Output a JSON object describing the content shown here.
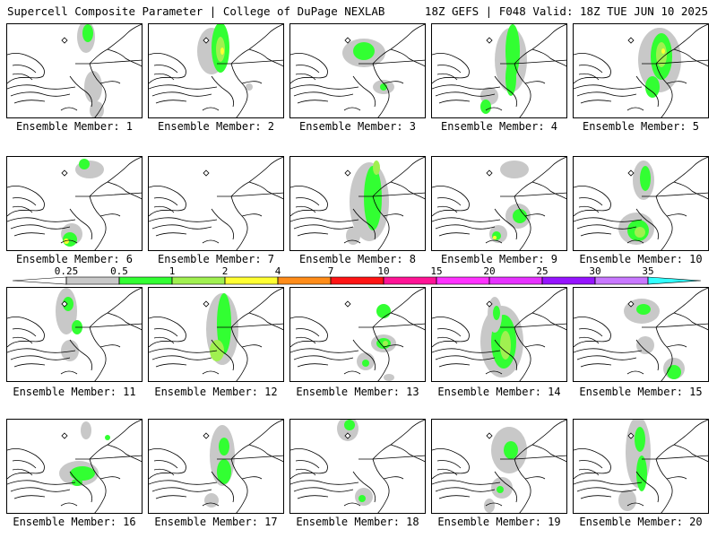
{
  "header": {
    "left": "Supercell Composite Parameter | College of DuPage NEXLAB",
    "right": "18Z GEFS | F048 Valid: 18Z TUE JUN 10 2025"
  },
  "members": [
    {
      "label": "Ensemble Member: 1"
    },
    {
      "label": "Ensemble Member: 2"
    },
    {
      "label": "Ensemble Member: 3"
    },
    {
      "label": "Ensemble Member: 4"
    },
    {
      "label": "Ensemble Member: 5"
    },
    {
      "label": "Ensemble Member: 6"
    },
    {
      "label": "Ensemble Member: 7"
    },
    {
      "label": "Ensemble Member: 8"
    },
    {
      "label": "Ensemble Member: 9"
    },
    {
      "label": "Ensemble Member: 10"
    },
    {
      "label": "Ensemble Member: 11"
    },
    {
      "label": "Ensemble Member: 12"
    },
    {
      "label": "Ensemble Member: 13"
    },
    {
      "label": "Ensemble Member: 14"
    },
    {
      "label": "Ensemble Member: 15"
    },
    {
      "label": "Ensemble Member: 16"
    },
    {
      "label": "Ensemble Member: 17"
    },
    {
      "label": "Ensemble Member: 18"
    },
    {
      "label": "Ensemble Member: 19"
    },
    {
      "label": "Ensemble Member: 20"
    }
  ],
  "colorbar": {
    "levels": [
      "0.25",
      "0.5",
      "1",
      "2",
      "4",
      "7",
      "10",
      "15",
      "20",
      "25",
      "30",
      "35"
    ],
    "colors": [
      "#c8c8c8",
      "#32ff32",
      "#a0f050",
      "#ffff32",
      "#ff8c19",
      "#ff1414",
      "#ff1496",
      "#ff32ff",
      "#e632ff",
      "#9614ff",
      "#c878ff",
      "#32ffff"
    ]
  },
  "legend_colors": {
    "shading_low": "#c8c8c8",
    "shading_mid": "#32ff32",
    "shading_high": "#a0f050",
    "shading_peak": "#ffff32"
  }
}
